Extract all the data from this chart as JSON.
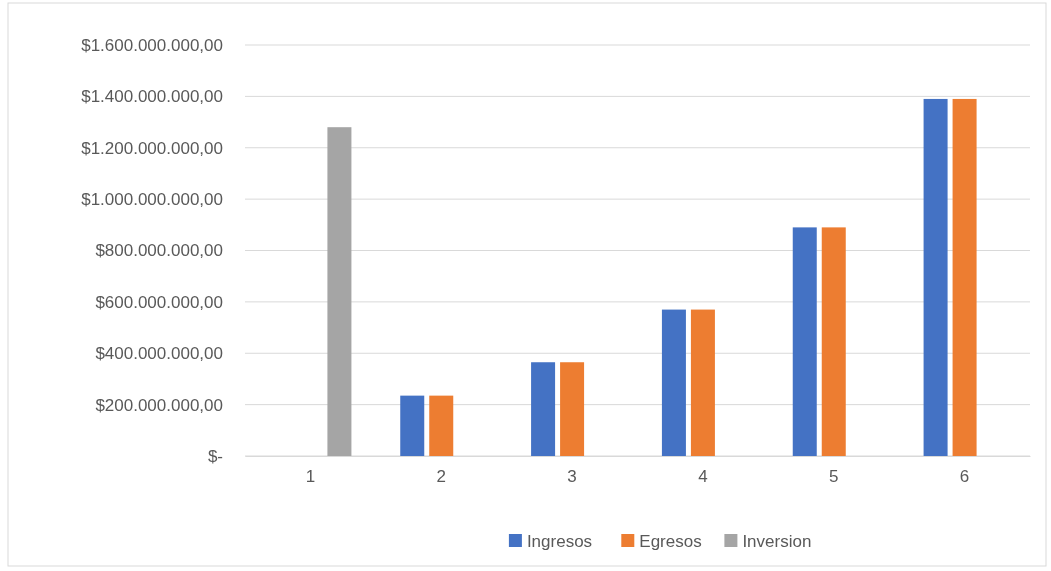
{
  "chart_data": {
    "type": "bar",
    "categories": [
      "1",
      "2",
      "3",
      "4",
      "5",
      "6"
    ],
    "series": [
      {
        "name": "Ingresos",
        "color": "#4472c4",
        "values": [
          null,
          235000000,
          365000000,
          570000000,
          890000000,
          1390000000
        ]
      },
      {
        "name": "Egresos",
        "color": "#ed7d31",
        "values": [
          null,
          235000000,
          365000000,
          570000000,
          890000000,
          1390000000
        ]
      },
      {
        "name": "Inversion",
        "color": "#a5a5a5",
        "values": [
          1280000000,
          null,
          null,
          null,
          null,
          null
        ]
      }
    ],
    "ylim": [
      0,
      1600000000
    ],
    "yticks": [
      {
        "value": 0,
        "label": "$-"
      },
      {
        "value": 200000000,
        "label": "$200.000.000,00"
      },
      {
        "value": 400000000,
        "label": "$400.000.000,00"
      },
      {
        "value": 600000000,
        "label": "$600.000.000,00"
      },
      {
        "value": 800000000,
        "label": "$800.000.000,00"
      },
      {
        "value": 1000000000,
        "label": "$1.000.000.000,00"
      },
      {
        "value": 1200000000,
        "label": "$1.200.000.000,00"
      },
      {
        "value": 1400000000,
        "label": "$1.400.000.000,00"
      },
      {
        "value": 1600000000,
        "label": "$1.600.000.000,00"
      }
    ],
    "grid": "y",
    "legend": "bottom"
  }
}
